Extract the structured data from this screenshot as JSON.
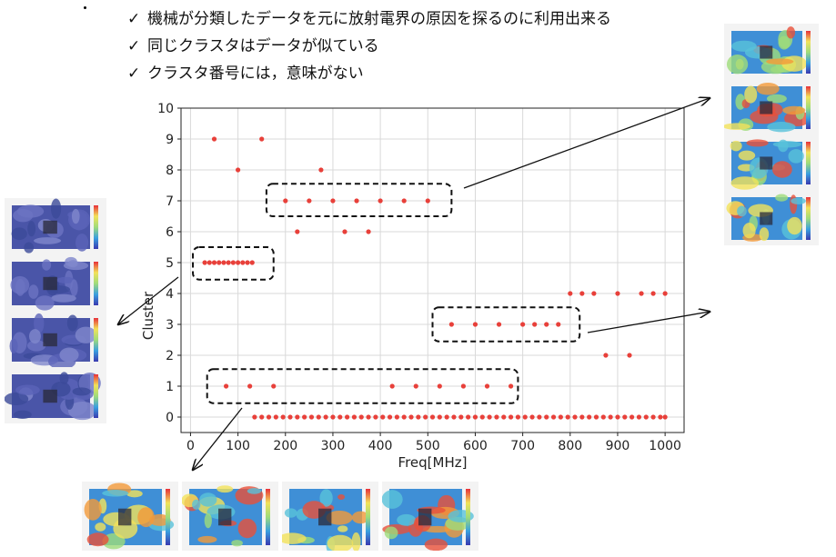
{
  "bullets": [
    "機械が分類したデータを元に放射電界の原因を探るのに利用出来る",
    "同じクラスタはデータが似ている",
    "クラスタ番号には，意味がない"
  ],
  "check_glyph": "✓",
  "chart_data": {
    "type": "scatter",
    "title": "",
    "xlabel": "Freq[MHz]",
    "ylabel": "Cluster",
    "xlim": [
      -20,
      1040
    ],
    "ylim": [
      -0.5,
      10
    ],
    "xticks": [
      0,
      100,
      200,
      300,
      400,
      500,
      600,
      700,
      800,
      900,
      1000
    ],
    "yticks": [
      0,
      1,
      2,
      3,
      4,
      5,
      6,
      7,
      8,
      9,
      10
    ],
    "grid": true,
    "marker_color": "#e8403a",
    "series": [
      {
        "points": [
          [
            50,
            9
          ],
          [
            150,
            9
          ],
          [
            100,
            8
          ],
          [
            275,
            8
          ],
          [
            200,
            7
          ],
          [
            250,
            7
          ],
          [
            300,
            7
          ],
          [
            350,
            7
          ],
          [
            400,
            7
          ],
          [
            450,
            7
          ],
          [
            500,
            7
          ],
          [
            225,
            6
          ],
          [
            325,
            6
          ],
          [
            375,
            6
          ],
          [
            30,
            5
          ],
          [
            40,
            5
          ],
          [
            50,
            5
          ],
          [
            60,
            5
          ],
          [
            70,
            5
          ],
          [
            80,
            5
          ],
          [
            90,
            5
          ],
          [
            100,
            5
          ],
          [
            110,
            5
          ],
          [
            120,
            5
          ],
          [
            130,
            5
          ],
          [
            800,
            4
          ],
          [
            825,
            4
          ],
          [
            850,
            4
          ],
          [
            900,
            4
          ],
          [
            950,
            4
          ],
          [
            975,
            4
          ],
          [
            1000,
            4
          ],
          [
            550,
            3
          ],
          [
            600,
            3
          ],
          [
            650,
            3
          ],
          [
            700,
            3
          ],
          [
            725,
            3
          ],
          [
            750,
            3
          ],
          [
            775,
            3
          ],
          [
            875,
            2
          ],
          [
            925,
            2
          ],
          [
            75,
            1
          ],
          [
            125,
            1
          ],
          [
            175,
            1
          ],
          [
            425,
            1
          ],
          [
            475,
            1
          ],
          [
            525,
            1
          ],
          [
            575,
            1
          ],
          [
            625,
            1
          ],
          [
            675,
            1
          ],
          [
            135,
            0
          ],
          [
            150,
            0
          ],
          [
            165,
            0
          ],
          [
            180,
            0
          ],
          [
            195,
            0
          ],
          [
            210,
            0
          ],
          [
            225,
            0
          ],
          [
            240,
            0
          ],
          [
            255,
            0
          ],
          [
            270,
            0
          ],
          [
            285,
            0
          ],
          [
            300,
            0
          ],
          [
            315,
            0
          ],
          [
            330,
            0
          ],
          [
            345,
            0
          ],
          [
            360,
            0
          ],
          [
            375,
            0
          ],
          [
            390,
            0
          ],
          [
            405,
            0
          ],
          [
            420,
            0
          ],
          [
            435,
            0
          ],
          [
            450,
            0
          ],
          [
            465,
            0
          ],
          [
            480,
            0
          ],
          [
            495,
            0
          ],
          [
            510,
            0
          ],
          [
            525,
            0
          ],
          [
            540,
            0
          ],
          [
            555,
            0
          ],
          [
            570,
            0
          ],
          [
            585,
            0
          ],
          [
            600,
            0
          ],
          [
            615,
            0
          ],
          [
            630,
            0
          ],
          [
            645,
            0
          ],
          [
            660,
            0
          ],
          [
            675,
            0
          ],
          [
            690,
            0
          ],
          [
            705,
            0
          ],
          [
            720,
            0
          ],
          [
            735,
            0
          ],
          [
            750,
            0
          ],
          [
            765,
            0
          ],
          [
            780,
            0
          ],
          [
            795,
            0
          ],
          [
            810,
            0
          ],
          [
            825,
            0
          ],
          [
            840,
            0
          ],
          [
            855,
            0
          ],
          [
            870,
            0
          ],
          [
            885,
            0
          ],
          [
            900,
            0
          ],
          [
            915,
            0
          ],
          [
            930,
            0
          ],
          [
            945,
            0
          ],
          [
            960,
            0
          ],
          [
            975,
            0
          ],
          [
            990,
            0
          ],
          [
            1000,
            0
          ]
        ]
      }
    ],
    "highlight_boxes": [
      {
        "x": [
          5,
          175
        ],
        "y": [
          4.45,
          5.5
        ]
      },
      {
        "x": [
          160,
          550
        ],
        "y": [
          6.5,
          7.55
        ]
      },
      {
        "x": [
          510,
          820
        ],
        "y": [
          2.45,
          3.55
        ]
      },
      {
        "x": [
          35,
          690
        ],
        "y": [
          0.45,
          1.55
        ]
      }
    ]
  }
}
